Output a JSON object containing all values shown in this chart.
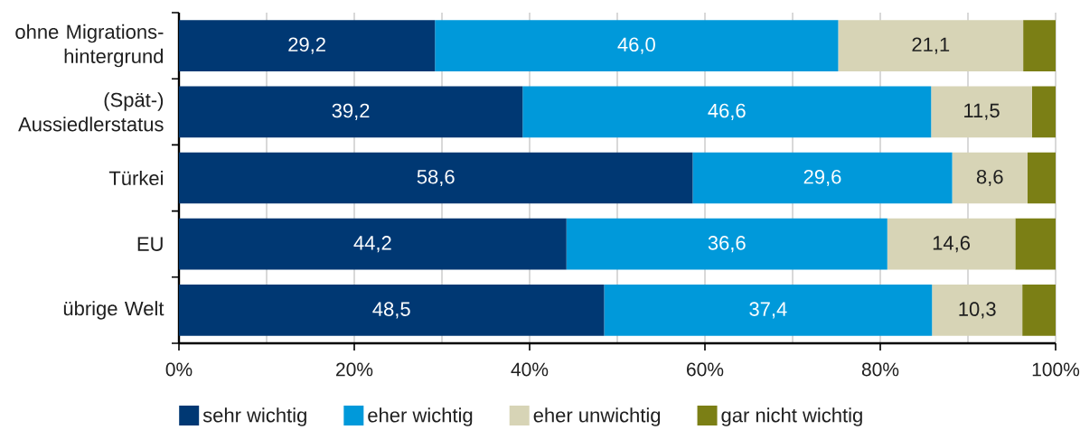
{
  "chart_data": {
    "type": "bar",
    "orientation": "horizontal",
    "stacked": true,
    "categories": [
      "ohne Migrations-hintergrund",
      "(Spät-) Aussiedlerstatus",
      "Türkei",
      "EU",
      "übrige Welt"
    ],
    "series": [
      {
        "name": "sehr wichtig",
        "color": "#003873",
        "values": [
          29.2,
          39.2,
          58.6,
          44.2,
          48.5
        ],
        "value_labels": [
          "29,2",
          "39,2",
          "58,6",
          "44,2",
          "48,5"
        ]
      },
      {
        "name": "eher wichtig",
        "color": "#0099da",
        "values": [
          46.0,
          46.6,
          29.6,
          36.6,
          37.4
        ],
        "value_labels": [
          "46,0",
          "46,6",
          "29,6",
          "36,6",
          "37,4"
        ]
      },
      {
        "name": "eher unwichtig",
        "color": "#d7d4b6",
        "values": [
          21.1,
          11.5,
          8.6,
          14.6,
          10.3
        ],
        "value_labels": [
          "21,1",
          "11,5",
          "8,6",
          "14,6",
          "10,3"
        ]
      },
      {
        "name": "gar nicht wichtig",
        "color": "#7b7f15",
        "values": [
          3.7,
          2.7,
          3.2,
          4.6,
          3.8
        ]
      }
    ],
    "xlim": [
      0,
      100
    ],
    "xticks": [
      {
        "value": 0,
        "label": "0%"
      },
      {
        "value": 10,
        "label": null
      },
      {
        "value": 20,
        "label": "20%"
      },
      {
        "value": 30,
        "label": null
      },
      {
        "value": 40,
        "label": "40%"
      },
      {
        "value": 50,
        "label": null
      },
      {
        "value": 60,
        "label": "60%"
      },
      {
        "value": 70,
        "label": null
      },
      {
        "value": 80,
        "label": "80%"
      },
      {
        "value": 90,
        "label": null
      },
      {
        "value": 100,
        "label": "100%"
      }
    ],
    "grid": "x",
    "legend": "bottom"
  }
}
